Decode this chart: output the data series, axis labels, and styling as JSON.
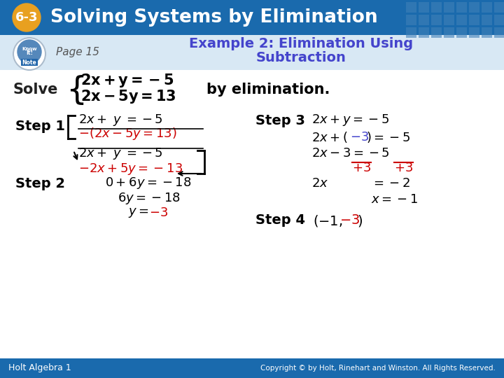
{
  "title_badge": "6-3",
  "title_text": "Solving Systems by Elimination",
  "title_bg": "#1a6aad",
  "title_badge_bg": "#e8a020",
  "example_title_line1": "Example 2: Elimination Using",
  "example_title_line2": "Subtraction",
  "page_label": "Page 15",
  "footer_left": "Holt Algebra 1",
  "footer_right": "Copyright © by Holt, Rinehart and Winston. All Rights Reserved.",
  "footer_bg": "#1a6aad",
  "bg_color": "#ffffff",
  "red_color": "#cc0000",
  "blue_color": "#4444cc",
  "dark_color": "#222222",
  "grid_color": "#4080b8"
}
